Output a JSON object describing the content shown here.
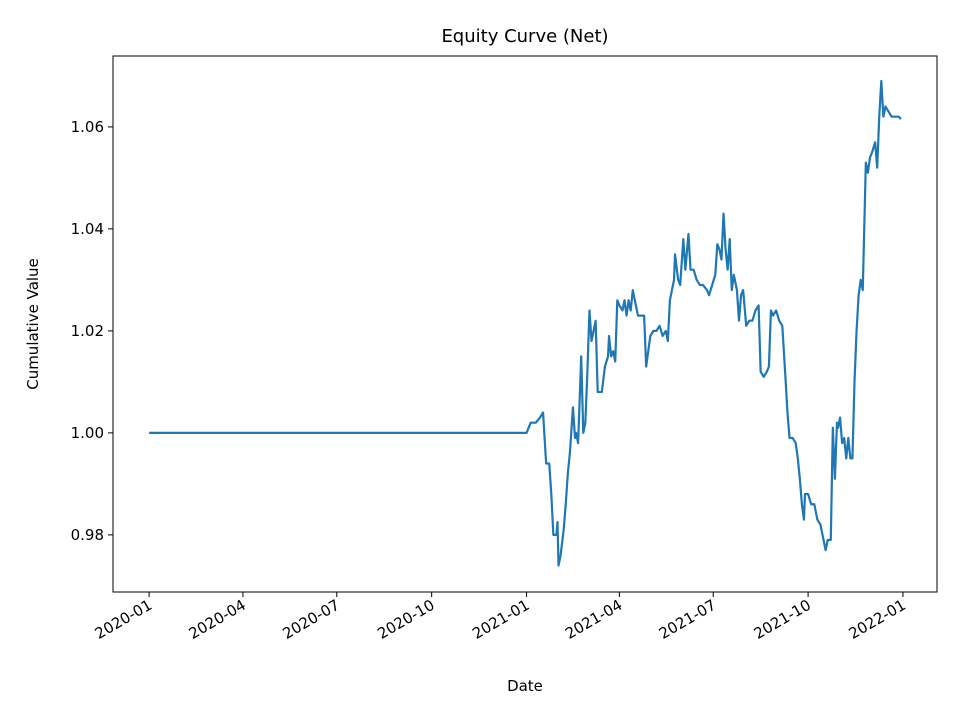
{
  "chart_data": {
    "type": "line",
    "title": "Equity Curve (Net)",
    "x_label": "Date",
    "y_label": "Cumulative Value",
    "color": "#1f77b4",
    "x": [
      "2020-01-01",
      "2021-01-01",
      "2021-01-05",
      "2021-01-10",
      "2021-01-14",
      "2021-01-17",
      "2021-01-20",
      "2021-01-23",
      "2021-01-25",
      "2021-01-27",
      "2021-01-30",
      "2021-01-31",
      "2021-02-01",
      "2021-02-03",
      "2021-02-06",
      "2021-02-08",
      "2021-02-10",
      "2021-02-12",
      "2021-02-15",
      "2021-02-17",
      "2021-02-18",
      "2021-02-20",
      "2021-02-23",
      "2021-02-25",
      "2021-02-27",
      "2021-03-01",
      "2021-03-03",
      "2021-03-05",
      "2021-03-07",
      "2021-03-09",
      "2021-03-11",
      "2021-03-15",
      "2021-03-18",
      "2021-03-21",
      "2021-03-22",
      "2021-03-24",
      "2021-03-26",
      "2021-03-28",
      "2021-03-30",
      "2021-04-01",
      "2021-04-04",
      "2021-04-06",
      "2021-04-08",
      "2021-04-10",
      "2021-04-12",
      "2021-04-14",
      "2021-04-17",
      "2021-04-19",
      "2021-04-22",
      "2021-04-25",
      "2021-04-27",
      "2021-04-29",
      "2021-05-01",
      "2021-05-04",
      "2021-05-07",
      "2021-05-10",
      "2021-05-13",
      "2021-05-16",
      "2021-05-18",
      "2021-05-20",
      "2021-05-22",
      "2021-05-24",
      "2021-05-25",
      "2021-05-28",
      "2021-05-30",
      "2021-06-02",
      "2021-06-04",
      "2021-06-07",
      "2021-06-09",
      "2021-06-12",
      "2021-06-15",
      "2021-06-18",
      "2021-06-21",
      "2021-06-25",
      "2021-06-27",
      "2021-06-30",
      "2021-07-03",
      "2021-07-05",
      "2021-07-07",
      "2021-07-09",
      "2021-07-11",
      "2021-07-13",
      "2021-07-15",
      "2021-07-17",
      "2021-07-19",
      "2021-07-21",
      "2021-07-24",
      "2021-07-26",
      "2021-07-28",
      "2021-07-30",
      "2021-08-02",
      "2021-08-05",
      "2021-08-08",
      "2021-08-11",
      "2021-08-14",
      "2021-08-16",
      "2021-08-19",
      "2021-08-22",
      "2021-08-24",
      "2021-08-26",
      "2021-08-28",
      "2021-08-31",
      "2021-09-03",
      "2021-09-06",
      "2021-09-09",
      "2021-09-11",
      "2021-09-13",
      "2021-09-16",
      "2021-09-19",
      "2021-09-21",
      "2021-09-23",
      "2021-09-25",
      "2021-09-27",
      "2021-09-28",
      "2021-10-01",
      "2021-10-04",
      "2021-10-07",
      "2021-10-10",
      "2021-10-13",
      "2021-10-16",
      "2021-10-18",
      "2021-10-20",
      "2021-10-23",
      "2021-10-25",
      "2021-10-27",
      "2021-10-29",
      "2021-10-30",
      "2021-11-01",
      "2021-11-03",
      "2021-11-05",
      "2021-11-07",
      "2021-11-09",
      "2021-11-11",
      "2021-11-13",
      "2021-11-15",
      "2021-11-17",
      "2021-11-19",
      "2021-11-21",
      "2021-11-23",
      "2021-11-26",
      "2021-11-28",
      "2021-11-30",
      "2021-12-02",
      "2021-12-05",
      "2021-12-07",
      "2021-12-09",
      "2021-12-11",
      "2021-12-13",
      "2021-12-15",
      "2021-12-18",
      "2021-12-21",
      "2021-12-25",
      "2021-12-28",
      "2021-12-30"
    ],
    "values": [
      1,
      1,
      1.002,
      1.002,
      1.003,
      1.004,
      0.994,
      0.994,
      0.988,
      0.98,
      0.98,
      0.9825,
      0.974,
      0.976,
      0.981,
      0.986,
      0.992,
      0.996,
      1.005,
      0.999,
      1,
      0.998,
      1.015,
      1,
      1.002,
      1.012,
      1.024,
      1.018,
      1.02,
      1.022,
      1.008,
      1.008,
      1.013,
      1.015,
      1.019,
      1.015,
      1.016,
      1.014,
      1.026,
      1.025,
      1.024,
      1.026,
      1.023,
      1.026,
      1.024,
      1.028,
      1.025,
      1.023,
      1.023,
      1.023,
      1.013,
      1.016,
      1.019,
      1.02,
      1.02,
      1.021,
      1.019,
      1.02,
      1.018,
      1.026,
      1.028,
      1.03,
      1.035,
      1.03,
      1.029,
      1.038,
      1.032,
      1.039,
      1.032,
      1.032,
      1.03,
      1.029,
      1.029,
      1.028,
      1.027,
      1.029,
      1.031,
      1.037,
      1.036,
      1.034,
      1.043,
      1.036,
      1.032,
      1.038,
      1.028,
      1.031,
      1.028,
      1.022,
      1.027,
      1.028,
      1.021,
      1.022,
      1.022,
      1.024,
      1.025,
      1.012,
      1.011,
      1.012,
      1.013,
      1.024,
      1.023,
      1.024,
      1.022,
      1.021,
      1.011,
      1.004,
      0.999,
      0.999,
      0.998,
      0.995,
      0.991,
      0.986,
      0.983,
      0.988,
      0.988,
      0.986,
      0.986,
      0.983,
      0.982,
      0.979,
      0.977,
      0.979,
      0.979,
      1.001,
      0.991,
      1.002,
      1.001,
      1.003,
      0.998,
      0.999,
      0.995,
      0.999,
      0.995,
      0.995,
      1.01,
      1.02,
      1.027,
      1.03,
      1.028,
      1.053,
      1.051,
      1.054,
      1.055,
      1.057,
      1.052,
      1.062,
      1.069,
      1.062,
      1.064,
      1.063,
      1.062,
      1.062,
      1.062,
      1.0615
    ],
    "xlim": [
      "2019-11-27",
      "2022-02-03"
    ],
    "xticks": [
      {
        "value": "2020-01-01",
        "label": "2020-01"
      },
      {
        "value": "2020-04-01",
        "label": "2020-04"
      },
      {
        "value": "2020-07-01",
        "label": "2020-07"
      },
      {
        "value": "2020-10-01",
        "label": "2020-10"
      },
      {
        "value": "2021-01-01",
        "label": "2021-01"
      },
      {
        "value": "2021-04-01",
        "label": "2021-04"
      },
      {
        "value": "2021-07-01",
        "label": "2021-07"
      },
      {
        "value": "2021-10-01",
        "label": "2021-10"
      },
      {
        "value": "2022-01-01",
        "label": "2022-01"
      }
    ],
    "ylim": [
      0.9688,
      1.0739
    ],
    "yticks": [
      0.98,
      {
        "value": 1,
        "label": "1.00"
      },
      1.02,
      1.04,
      1.06
    ],
    "grid": false
  }
}
